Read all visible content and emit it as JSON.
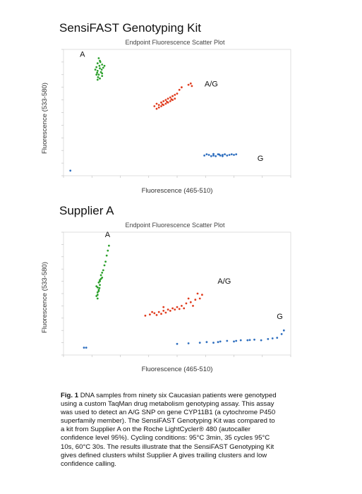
{
  "chart_data": [
    {
      "type": "scatter",
      "section_title": "SensiFAST Genotyping Kit",
      "title": "Endpoint Fluorescence Scatter Plot",
      "xlabel": "Fluorescence (465-510)",
      "ylabel": "Fluorescence (533-580)",
      "xlim": [
        0,
        10
      ],
      "ylim": [
        0,
        10
      ],
      "grid": false,
      "series": [
        {
          "name": "A",
          "color": "#2ca02c",
          "points": [
            [
              1.55,
              9.3
            ],
            [
              1.6,
              9.1
            ],
            [
              1.5,
              8.9
            ],
            [
              1.7,
              8.8
            ],
            [
              1.45,
              8.6
            ],
            [
              1.6,
              8.5
            ],
            [
              1.75,
              8.55
            ],
            [
              1.5,
              8.3
            ],
            [
              1.65,
              8.2
            ],
            [
              1.55,
              8.0
            ],
            [
              1.7,
              7.9
            ],
            [
              1.4,
              8.4
            ],
            [
              1.8,
              8.7
            ],
            [
              1.6,
              7.7
            ],
            [
              1.5,
              7.6
            ],
            [
              1.7,
              8.1
            ],
            [
              1.45,
              8.0
            ],
            [
              1.58,
              8.7
            ],
            [
              1.68,
              8.4
            ],
            [
              1.52,
              7.8
            ],
            [
              1.62,
              9.0
            ],
            [
              1.48,
              8.15
            ]
          ]
        },
        {
          "name": "A/G",
          "color": "#e03c1f",
          "points": [
            [
              4.0,
              5.5
            ],
            [
              4.1,
              5.7
            ],
            [
              4.2,
              5.6
            ],
            [
              4.3,
              5.8
            ],
            [
              4.4,
              5.9
            ],
            [
              4.2,
              5.4
            ],
            [
              4.5,
              6.0
            ],
            [
              4.6,
              6.1
            ],
            [
              4.7,
              6.2
            ],
            [
              4.8,
              6.3
            ],
            [
              4.9,
              6.4
            ],
            [
              5.0,
              6.5
            ],
            [
              4.3,
              5.5
            ],
            [
              4.6,
              5.8
            ],
            [
              4.8,
              6.0
            ],
            [
              5.1,
              6.8
            ],
            [
              5.2,
              7.0
            ],
            [
              5.5,
              7.2
            ],
            [
              5.6,
              7.3
            ],
            [
              5.65,
              7.1
            ],
            [
              4.5,
              5.7
            ],
            [
              4.4,
              5.6
            ],
            [
              4.7,
              5.9
            ],
            [
              4.9,
              6.1
            ],
            [
              4.1,
              5.3
            ],
            [
              4.35,
              5.65
            ],
            [
              4.55,
              5.85
            ],
            [
              4.75,
              6.05
            ]
          ]
        },
        {
          "name": "G",
          "color": "#2f6fbf",
          "points": [
            [
              6.2,
              1.6
            ],
            [
              6.4,
              1.65
            ],
            [
              6.6,
              1.6
            ],
            [
              6.8,
              1.7
            ],
            [
              7.0,
              1.65
            ],
            [
              7.2,
              1.6
            ],
            [
              7.4,
              1.7
            ],
            [
              6.5,
              1.55
            ],
            [
              6.7,
              1.55
            ],
            [
              6.9,
              1.6
            ],
            [
              7.1,
              1.7
            ],
            [
              7.3,
              1.65
            ],
            [
              6.3,
              1.7
            ],
            [
              6.6,
              1.72
            ],
            [
              7.0,
              1.55
            ],
            [
              7.5,
              1.65
            ],
            [
              7.6,
              1.7
            ],
            [
              6.85,
              1.68
            ]
          ]
        },
        {
          "name": "",
          "color": "#2f6fbf",
          "points": [
            [
              0.3,
              0.4
            ]
          ]
        }
      ]
    },
    {
      "type": "scatter",
      "section_title": "Supplier A",
      "title": "Endpoint Fluorescence Scatter Plot",
      "xlabel": "Fluorescence (465-510)",
      "ylabel": "Fluorescence (533-580)",
      "xlim": [
        0,
        10
      ],
      "ylim": [
        0,
        10
      ],
      "grid": false,
      "series": [
        {
          "name": "A",
          "color": "#2ca02c",
          "points": [
            [
              2.0,
              8.9
            ],
            [
              1.95,
              8.5
            ],
            [
              1.9,
              8.1
            ],
            [
              1.85,
              7.6
            ],
            [
              1.8,
              7.3
            ],
            [
              1.75,
              6.9
            ],
            [
              1.7,
              6.7
            ],
            [
              1.65,
              6.5
            ],
            [
              1.7,
              6.3
            ],
            [
              1.6,
              6.1
            ],
            [
              1.55,
              5.9
            ],
            [
              1.6,
              5.7
            ],
            [
              1.5,
              5.5
            ],
            [
              1.55,
              5.3
            ],
            [
              1.5,
              5.1
            ],
            [
              1.45,
              4.8
            ],
            [
              1.5,
              4.6
            ],
            [
              1.45,
              5.6
            ],
            [
              1.6,
              6.0
            ],
            [
              1.55,
              5.2
            ],
            [
              1.65,
              6.2
            ],
            [
              1.5,
              4.9
            ],
            [
              1.58,
              5.45
            ]
          ]
        },
        {
          "name": "A/G",
          "color": "#e03c1f",
          "points": [
            [
              3.6,
              3.2
            ],
            [
              3.8,
              3.3
            ],
            [
              4.0,
              3.4
            ],
            [
              4.2,
              3.5
            ],
            [
              4.4,
              3.6
            ],
            [
              4.6,
              3.7
            ],
            [
              4.8,
              3.8
            ],
            [
              5.0,
              3.9
            ],
            [
              5.2,
              4.0
            ],
            [
              5.4,
              4.2
            ],
            [
              5.6,
              4.3
            ],
            [
              5.8,
              4.5
            ],
            [
              6.0,
              4.6
            ],
            [
              5.5,
              4.6
            ],
            [
              5.9,
              5.0
            ],
            [
              6.1,
              4.9
            ],
            [
              4.1,
              3.25
            ],
            [
              4.5,
              3.45
            ],
            [
              4.3,
              3.35
            ],
            [
              4.7,
              3.6
            ],
            [
              4.9,
              3.7
            ],
            [
              5.1,
              3.75
            ],
            [
              4.4,
              3.9
            ],
            [
              3.9,
              3.5
            ],
            [
              5.3,
              3.8
            ],
            [
              5.7,
              4.0
            ]
          ]
        },
        {
          "name": "G",
          "color": "#2f6fbf",
          "points": [
            [
              5.0,
              0.9
            ],
            [
              5.5,
              0.95
            ],
            [
              6.0,
              1.0
            ],
            [
              6.3,
              1.05
            ],
            [
              6.6,
              1.0
            ],
            [
              6.9,
              1.1
            ],
            [
              7.2,
              1.15
            ],
            [
              7.5,
              1.1
            ],
            [
              7.8,
              1.2
            ],
            [
              8.1,
              1.2
            ],
            [
              8.4,
              1.25
            ],
            [
              8.7,
              1.2
            ],
            [
              9.0,
              1.3
            ],
            [
              9.2,
              1.35
            ],
            [
              9.4,
              1.4
            ],
            [
              9.6,
              1.7
            ],
            [
              9.7,
              2.0
            ],
            [
              6.8,
              1.05
            ],
            [
              7.6,
              1.15
            ],
            [
              8.2,
              1.22
            ]
          ]
        },
        {
          "name": "",
          "color": "#2f6fbf",
          "points": [
            [
              0.9,
              0.6
            ],
            [
              1.0,
              0.6
            ]
          ]
        }
      ]
    }
  ],
  "caption": {
    "label": "Fig. 1",
    "text": " DNA samples from ninety six Caucasian patients were genotyped using a custom TaqMan drug metabolism genotyping assay. This assay was used to detect an A/G SNP on gene CYP11B1 (a cytochrome P450 superfamily member). The SensiFAST Genotyping Kit was compared to a kit from Supplier A on the Roche LightCycler® 480 (autocaller confidence level 95%). Cycling conditions: 95°C 3min, 35 cycles 95°C 10s, 60°C 30s. The results illustrate that the SensiFAST Genotyping Kit gives defined clusters whilst Supplier A gives trailing clusters and low confidence calling."
  }
}
